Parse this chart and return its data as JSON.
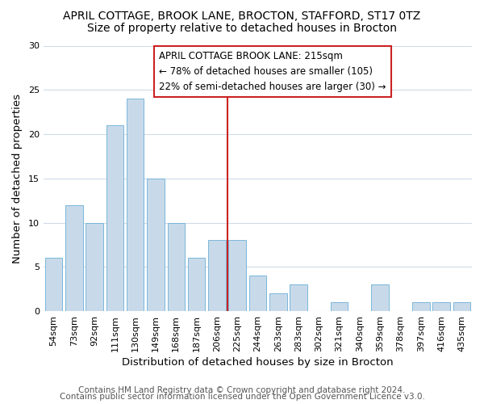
{
  "title1": "APRIL COTTAGE, BROOK LANE, BROCTON, STAFFORD, ST17 0TZ",
  "title2": "Size of property relative to detached houses in Brocton",
  "xlabel": "Distribution of detached houses by size in Brocton",
  "ylabel": "Number of detached properties",
  "footer1": "Contains HM Land Registry data © Crown copyright and database right 2024.",
  "footer2": "Contains public sector information licensed under the Open Government Licence v3.0.",
  "categories": [
    "54sqm",
    "73sqm",
    "92sqm",
    "111sqm",
    "130sqm",
    "149sqm",
    "168sqm",
    "187sqm",
    "206sqm",
    "225sqm",
    "244sqm",
    "263sqm",
    "283sqm",
    "302sqm",
    "321sqm",
    "340sqm",
    "359sqm",
    "378sqm",
    "397sqm",
    "416sqm",
    "435sqm"
  ],
  "values": [
    6,
    12,
    10,
    21,
    24,
    15,
    10,
    6,
    8,
    8,
    4,
    2,
    3,
    0,
    1,
    0,
    3,
    0,
    1,
    1,
    1
  ],
  "bar_color": "#c8daea",
  "bar_edge_color": "#6aaed6",
  "highlight_color": "#cc2222",
  "vline_x": 8.5,
  "annotation_title": "APRIL COTTAGE BROOK LANE: 215sqm",
  "annotation_line1": "← 78% of detached houses are smaller (105)",
  "annotation_line2": "22% of semi-detached houses are larger (30) →",
  "ylim": [
    0,
    30
  ],
  "yticks": [
    0,
    5,
    10,
    15,
    20,
    25,
    30
  ],
  "background_color": "#ffffff",
  "plot_bg_color": "#ffffff",
  "grid_color": "#d0dce8",
  "title1_fontsize": 10,
  "title2_fontsize": 10,
  "axis_label_fontsize": 9.5,
  "tick_fontsize": 8,
  "footer_fontsize": 7.5,
  "annotation_fontsize": 8.5
}
